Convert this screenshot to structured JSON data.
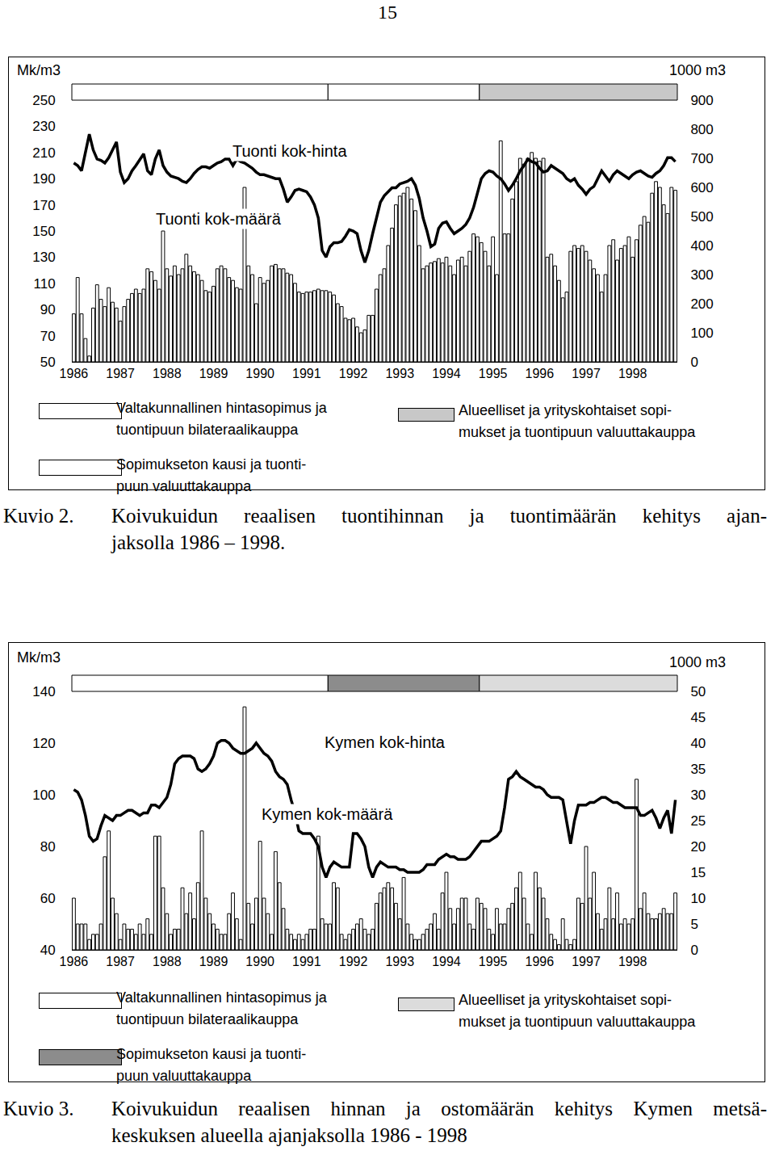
{
  "page_number": "15",
  "chart_data": [
    {
      "type": "bar",
      "figure_label": "Kuvio 2.",
      "caption": [
        "Koivukuidun reaalisen tuontihinnan ja tuontimäärän kehitys ajan-",
        "jaksolla 1986 – 1998."
      ],
      "ylabel": "Mk/m3",
      "y2label": "1000 m3",
      "categories": [
        "1986",
        null,
        null,
        null,
        null,
        null,
        null,
        null,
        null,
        null,
        null,
        null,
        "1987",
        null,
        null,
        null,
        null,
        null,
        null,
        null,
        null,
        null,
        null,
        null,
        "1988",
        null,
        null,
        null,
        null,
        null,
        null,
        null,
        null,
        null,
        null,
        null,
        "1989",
        null,
        null,
        null,
        null,
        null,
        null,
        null,
        null,
        null,
        null,
        null,
        "1990",
        null,
        null,
        null,
        null,
        null,
        null,
        null,
        null,
        null,
        null,
        null,
        "1991",
        null,
        null,
        null,
        null,
        null,
        null,
        null,
        null,
        null,
        null,
        null,
        "1992",
        null,
        null,
        null,
        null,
        null,
        null,
        null,
        null,
        null,
        null,
        null,
        "1993",
        null,
        null,
        null,
        null,
        null,
        null,
        null,
        null,
        null,
        null,
        null,
        "1994",
        null,
        null,
        null,
        null,
        null,
        null,
        null,
        null,
        null,
        null,
        null,
        "1995",
        null,
        null,
        null,
        null,
        null,
        null,
        null,
        null,
        null,
        null,
        null,
        "1996",
        null,
        null,
        null,
        null,
        null,
        null,
        null,
        null,
        null,
        null,
        null,
        "1997",
        null,
        null,
        null,
        null,
        null,
        null,
        null,
        null,
        null,
        null,
        null,
        "1998",
        null,
        null,
        null,
        null,
        null,
        null,
        null,
        null,
        null,
        null,
        null
      ],
      "series": [
        {
          "name": "Tuonti kok-määrä",
          "type": "bar",
          "axis": "y2",
          "color": "#ffffff",
          "values": [
            165,
            290,
            165,
            80,
            20,
            185,
            265,
            215,
            190,
            255,
            205,
            185,
            140,
            190,
            215,
            235,
            250,
            235,
            250,
            320,
            310,
            280,
            250,
            450,
            320,
            295,
            330,
            300,
            320,
            370,
            330,
            310,
            300,
            280,
            245,
            240,
            260,
            320,
            330,
            320,
            290,
            280,
            255,
            250,
            600,
            330,
            300,
            200,
            290,
            270,
            280,
            330,
            335,
            320,
            320,
            305,
            300,
            270,
            240,
            235,
            240,
            240,
            245,
            250,
            245,
            245,
            240,
            230,
            200,
            190,
            150,
            145,
            150,
            120,
            100,
            110,
            160,
            160,
            250,
            300,
            320,
            400,
            460,
            540,
            570,
            580,
            600,
            560,
            520,
            400,
            320,
            330,
            340,
            345,
            355,
            340,
            360,
            330,
            300,
            350,
            360,
            330,
            380,
            440,
            430,
            410,
            380,
            330,
            430,
            300,
            760,
            440,
            440,
            560,
            620,
            700,
            680,
            700,
            720,
            700,
            690,
            700,
            360,
            370,
            330,
            280,
            220,
            240,
            380,
            400,
            390,
            400,
            380,
            350,
            320,
            300,
            240,
            300,
            400,
            420,
            350,
            390,
            400,
            430,
            360,
            420,
            470,
            500,
            480,
            580,
            620,
            600,
            540,
            510,
            600,
            590
          ]
        },
        {
          "name": "Tuonti kok-hinta",
          "type": "line",
          "color": "#000000",
          "values": [
            202,
            200,
            196,
            210,
            224,
            212,
            205,
            204,
            202,
            206,
            212,
            218,
            195,
            187,
            190,
            196,
            200,
            205,
            209,
            196,
            193,
            205,
            212,
            200,
            195,
            192,
            191,
            190,
            188,
            187,
            190,
            194,
            197,
            199,
            199,
            198,
            200,
            202,
            203,
            205,
            205,
            200,
            205,
            203,
            202,
            200,
            198,
            195,
            193,
            193,
            192,
            191,
            190,
            190,
            182,
            172,
            176,
            181,
            182,
            181,
            180,
            176,
            170,
            160,
            135,
            130,
            138,
            141,
            141,
            142,
            146,
            151,
            150,
            148,
            135,
            126,
            135,
            148,
            160,
            172,
            177,
            180,
            183,
            183,
            186,
            187,
            188,
            190,
            185,
            175,
            160,
            150,
            138,
            140,
            152,
            156,
            157,
            152,
            148,
            150,
            152,
            155,
            160,
            168,
            180,
            190,
            194,
            196,
            195,
            192,
            190,
            186,
            181,
            185,
            190,
            196,
            200,
            205,
            203,
            202,
            198,
            195,
            196,
            200,
            198,
            196,
            194,
            190,
            188,
            190,
            185,
            182,
            178,
            182,
            184,
            190,
            196,
            192,
            188,
            193,
            196,
            194,
            192,
            190,
            193,
            195,
            196,
            194,
            192,
            191,
            194,
            196,
            200,
            206,
            206,
            203
          ]
        }
      ],
      "ylim": [
        50,
        250
      ],
      "yticks": [
        50,
        70,
        90,
        110,
        130,
        150,
        170,
        190,
        210,
        230,
        250
      ],
      "y2lim": [
        0,
        900
      ],
      "y2ticks": [
        0,
        100,
        200,
        300,
        400,
        500,
        600,
        700,
        800,
        900
      ],
      "grid": false,
      "periods": [
        {
          "label": [
            "Valtakunnallinen hintasopimus ja",
            "tuontipuun bilateraalikauppa"
          ],
          "start": 0,
          "end": 65,
          "color": "#ffffff"
        },
        {
          "label": [
            "Sopimukseton kausi ja tuonti-",
            "puun valuuttakauppa"
          ],
          "start": 66,
          "end": 104,
          "color": "#ffffff"
        },
        {
          "label": [
            "Alueelliset ja yrityskohtaiset sopi-",
            "mukset ja tuontipuun valuuttakauppa"
          ],
          "start": 105,
          "end": 155,
          "color": "#c8c8c8"
        }
      ]
    },
    {
      "type": "bar",
      "figure_label": "Kuvio 3.",
      "caption": [
        "Koivukuidun reaalisen hinnan ja ostomäärän kehitys Kymen metsä-",
        "keskuksen alueella ajanjaksolla 1986 - 1998"
      ],
      "ylabel": "Mk/m3",
      "y2label": "1000 m3",
      "categories": [
        "1986",
        null,
        null,
        null,
        null,
        null,
        null,
        null,
        null,
        null,
        null,
        null,
        "1987",
        null,
        null,
        null,
        null,
        null,
        null,
        null,
        null,
        null,
        null,
        null,
        "1988",
        null,
        null,
        null,
        null,
        null,
        null,
        null,
        null,
        null,
        null,
        null,
        "1989",
        null,
        null,
        null,
        null,
        null,
        null,
        null,
        null,
        null,
        null,
        null,
        "1990",
        null,
        null,
        null,
        null,
        null,
        null,
        null,
        null,
        null,
        null,
        null,
        "1991",
        null,
        null,
        null,
        null,
        null,
        null,
        null,
        null,
        null,
        null,
        null,
        "1992",
        null,
        null,
        null,
        null,
        null,
        null,
        null,
        null,
        null,
        null,
        null,
        "1993",
        null,
        null,
        null,
        null,
        null,
        null,
        null,
        null,
        null,
        null,
        null,
        "1994",
        null,
        null,
        null,
        null,
        null,
        null,
        null,
        null,
        null,
        null,
        null,
        "1995",
        null,
        null,
        null,
        null,
        null,
        null,
        null,
        null,
        null,
        null,
        null,
        "1996",
        null,
        null,
        null,
        null,
        null,
        null,
        null,
        null,
        null,
        null,
        null,
        "1997",
        null,
        null,
        null,
        null,
        null,
        null,
        null,
        null,
        null,
        null,
        null,
        "1998",
        null,
        null,
        null,
        null,
        null,
        null,
        null,
        null,
        null,
        null,
        null
      ],
      "series": [
        {
          "name": "Kymen kok-määrä",
          "type": "bar",
          "axis": "y2",
          "color": "#ffffff",
          "values": [
            10,
            5,
            5,
            5,
            2,
            3,
            3,
            5,
            18,
            23,
            10,
            7,
            2,
            5,
            4,
            4,
            3,
            5,
            3,
            6,
            3,
            22,
            22,
            12,
            7,
            3,
            4,
            4,
            12,
            7,
            11,
            6,
            13,
            23,
            10,
            7,
            5,
            4,
            3,
            3,
            7,
            11,
            6,
            2,
            47,
            9,
            5,
            10,
            21,
            10,
            7,
            3,
            19,
            13,
            8,
            4,
            3,
            2,
            3,
            2,
            3,
            4,
            4,
            22,
            6,
            5,
            5,
            13,
            12,
            3,
            2,
            3,
            4,
            5,
            6,
            4,
            3,
            4,
            9,
            11,
            12,
            13,
            12,
            9,
            6,
            14,
            5,
            3,
            2,
            2,
            3,
            4,
            5,
            7,
            4,
            11,
            15,
            8,
            5,
            8,
            10,
            10,
            5,
            4,
            10,
            9,
            8,
            4,
            3,
            8,
            5,
            5,
            8,
            9,
            12,
            15,
            10,
            5,
            3,
            15,
            12,
            10,
            6,
            3,
            2,
            1,
            6,
            2,
            1,
            2,
            10,
            9,
            20,
            10,
            15,
            7,
            4,
            6,
            12,
            6,
            11,
            5,
            6,
            5,
            6,
            33,
            8,
            11,
            7,
            6,
            6,
            7,
            8,
            7,
            7,
            11
          ]
        },
        {
          "name": "Kymen kok-hinta",
          "type": "line",
          "color": "#000000",
          "values": [
            102,
            101,
            98,
            92,
            84,
            82,
            83,
            88,
            92,
            91,
            90,
            92,
            92,
            93,
            94,
            94,
            93,
            92,
            93,
            93,
            96,
            96,
            95,
            97,
            99,
            104,
            112,
            114,
            115,
            115,
            115,
            114,
            110,
            109,
            110,
            112,
            115,
            120,
            121,
            121,
            120,
            118,
            117,
            116,
            116,
            117,
            118,
            120,
            118,
            116,
            115,
            113,
            109,
            107,
            106,
            104,
            98,
            93,
            86,
            85,
            85,
            85,
            83,
            80,
            72,
            68,
            72,
            74,
            73,
            72,
            72,
            72,
            85,
            85,
            83,
            80,
            72,
            68,
            72,
            74,
            73,
            72,
            72,
            72,
            71,
            71,
            70,
            70,
            70,
            70,
            71,
            73,
            73,
            73,
            75,
            76,
            77,
            76,
            76,
            75,
            75,
            75,
            76,
            78,
            80,
            82,
            82,
            82,
            83,
            84,
            86,
            95,
            106,
            107,
            109,
            107,
            106,
            105,
            104,
            103,
            103,
            102,
            100,
            99,
            99,
            99,
            98,
            90,
            81,
            90,
            96,
            96,
            96,
            97,
            97,
            98,
            99,
            99,
            98,
            97,
            97,
            96,
            95,
            95,
            95,
            95,
            92,
            92,
            93,
            94,
            91,
            87,
            91,
            94,
            85,
            98
          ]
        }
      ],
      "ylim": [
        40,
        140
      ],
      "yticks": [
        40,
        60,
        80,
        100,
        120,
        140
      ],
      "y2lim": [
        0,
        50
      ],
      "y2ticks": [
        0,
        5,
        10,
        15,
        20,
        25,
        30,
        35,
        40,
        45,
        50
      ],
      "grid": false,
      "periods": [
        {
          "label": [
            "Valtakunnallinen hintasopimus ja",
            "tuontipuun bilateraalikauppa"
          ],
          "start": 0,
          "end": 65,
          "color": "#ffffff"
        },
        {
          "label": [
            "Sopimukseton kausi ja tuonti-",
            "puun valuuttakauppa"
          ],
          "start": 66,
          "end": 104,
          "color": "#8c8c8c"
        },
        {
          "label": [
            "Alueelliset ja yrityskohtaiset sopi-",
            "mukset ja tuontipuun valuuttakauppa"
          ],
          "start": 105,
          "end": 155,
          "color": "#dcdcdc"
        }
      ]
    }
  ]
}
